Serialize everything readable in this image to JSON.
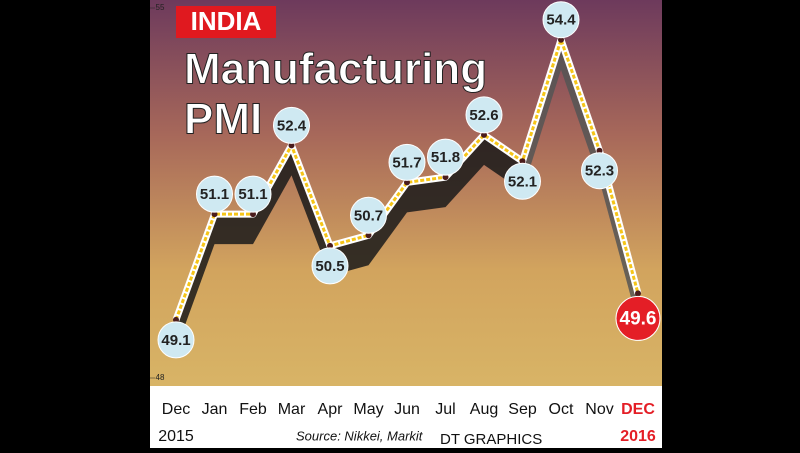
{
  "chart_data": {
    "type": "line",
    "badge": "INDIA",
    "title_lines": [
      "Manufacturing",
      "PMI"
    ],
    "categories": [
      "Dec",
      "Jan",
      "Feb",
      "Mar",
      "Apr",
      "May",
      "Jun",
      "Jul",
      "Aug",
      "Sep",
      "Oct",
      "Nov",
      "DEC"
    ],
    "year_labels": [
      "2015",
      "2016"
    ],
    "values": [
      49.1,
      51.1,
      51.1,
      52.4,
      50.5,
      50.7,
      51.7,
      51.8,
      52.6,
      52.1,
      54.4,
      52.3,
      49.6
    ],
    "color": "#f5c518",
    "label_circle_color": "#cfe9f2",
    "highlight_color": "#e41e26",
    "ylim": [
      48,
      55
    ],
    "yticks": [
      48,
      55
    ],
    "source": "Source: Nikkei, Markit",
    "credit": "DT GRAPHICS"
  }
}
